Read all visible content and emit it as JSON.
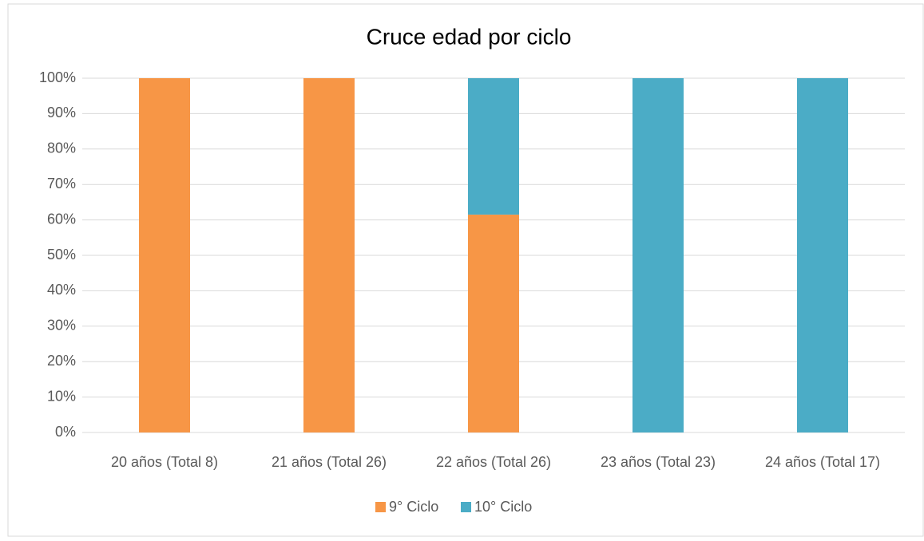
{
  "chart_data": {
    "type": "stacked_bar",
    "title": "Cruce edad por ciclo",
    "categories": [
      "20 años (Total 8)",
      "21 años (Total 26)",
      "22 años (Total 26)",
      "23 años (Total 23)",
      "24 años (Total 17)"
    ],
    "series": [
      {
        "name": "9° Ciclo",
        "color": "#f79646",
        "values": [
          100,
          100,
          61.5,
          0,
          0
        ]
      },
      {
        "name": "10° Ciclo",
        "color": "#4bacc6",
        "values": [
          0,
          0,
          38.5,
          100,
          100
        ]
      }
    ],
    "ylim": [
      0,
      100
    ],
    "yticks": [
      {
        "value": 0,
        "label": "0%"
      },
      {
        "value": 10,
        "label": "10%"
      },
      {
        "value": 20,
        "label": "20%"
      },
      {
        "value": 30,
        "label": "30%"
      },
      {
        "value": 40,
        "label": "40%"
      },
      {
        "value": 50,
        "label": "50%"
      },
      {
        "value": 60,
        "label": "60%"
      },
      {
        "value": 70,
        "label": "70%"
      },
      {
        "value": 80,
        "label": "80%"
      },
      {
        "value": 90,
        "label": "90%"
      },
      {
        "value": 100,
        "label": "100%"
      }
    ],
    "grid": true,
    "legend": "bottom"
  }
}
